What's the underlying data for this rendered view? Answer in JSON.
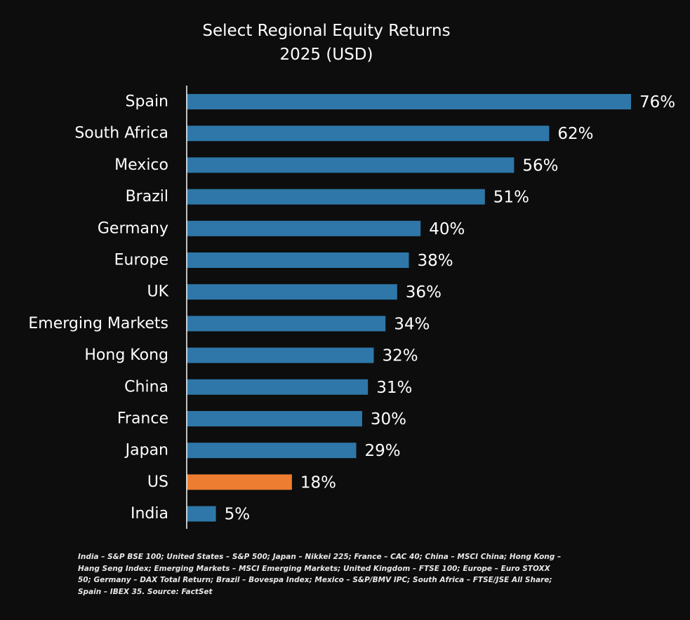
{
  "chart_data": {
    "type": "bar",
    "orientation": "horizontal",
    "title": "Select Regional Equity Returns",
    "subtitle": "2025 (USD)",
    "categories": [
      "Spain",
      "South Africa",
      "Mexico",
      "Brazil",
      "Germany",
      "Europe",
      "UK",
      "Emerging Markets",
      "Hong Kong",
      "China",
      "France",
      "Japan",
      "US",
      "India"
    ],
    "values": [
      76,
      62,
      56,
      51,
      40,
      38,
      36,
      34,
      32,
      31,
      30,
      29,
      18,
      5
    ],
    "data_labels": [
      "76%",
      "62%",
      "56%",
      "51%",
      "40%",
      "38%",
      "36%",
      "34%",
      "32%",
      "31%",
      "30%",
      "29%",
      "18%",
      "5%"
    ],
    "highlight_category": "US",
    "xlim": [
      0,
      76
    ],
    "xlabel": "",
    "ylabel": "",
    "grid": false
  },
  "colors": {
    "background": "#0d0d0d",
    "bar": "#2e77a8",
    "highlight": "#ed7d31",
    "text": "#ffffff",
    "axis": "#ffffff"
  },
  "footnote": "India – S&P BSE 100; United States – S&P 500; Japan – Nikkei 225; France – CAC 40; China – MSCI China; Hong Kong – Hang Seng Index; Emerging Markets – MSCI Emerging Markets; United Kingdom – FTSE 100; Europe – Euro STOXX 50; Germany – DAX Total Return; Brazil – Bovespa Index; Mexico – S&P/BMV IPC; South Africa – FTSE/JSE All Share; Spain – IBEX 35. Source: FactSet"
}
